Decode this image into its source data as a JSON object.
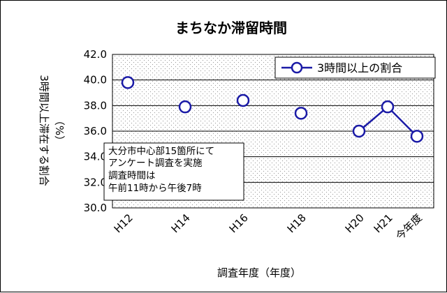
{
  "chart_data": {
    "type": "line",
    "title": "まちなか滞留時間",
    "xlabel": "調査年度（年度）",
    "ylabel": "3時間以上滞在する割合",
    "ylabel_unit": "（%）",
    "ylim": [
      30.0,
      42.0
    ],
    "y_ticks": [
      "42.0",
      "40.0",
      "38.0",
      "36.0",
      "34.0",
      "32.0",
      "30.0"
    ],
    "categories": [
      "H12",
      "H14",
      "H16",
      "H18",
      "H20",
      "H21",
      "今年度"
    ],
    "series": [
      {
        "name": "3時間以上の割合",
        "color": "#1a1aa6",
        "values": [
          39.8,
          37.9,
          38.4,
          37.4,
          36.0,
          37.9,
          35.6
        ],
        "connected_from_index": 4
      }
    ],
    "legend": {
      "placement": "top-right"
    },
    "annotation": [
      "大分市中心部15箇所にて",
      "アンケート調査を実施",
      "調査時間は",
      "午前11時から午後7時"
    ],
    "grid": true
  }
}
